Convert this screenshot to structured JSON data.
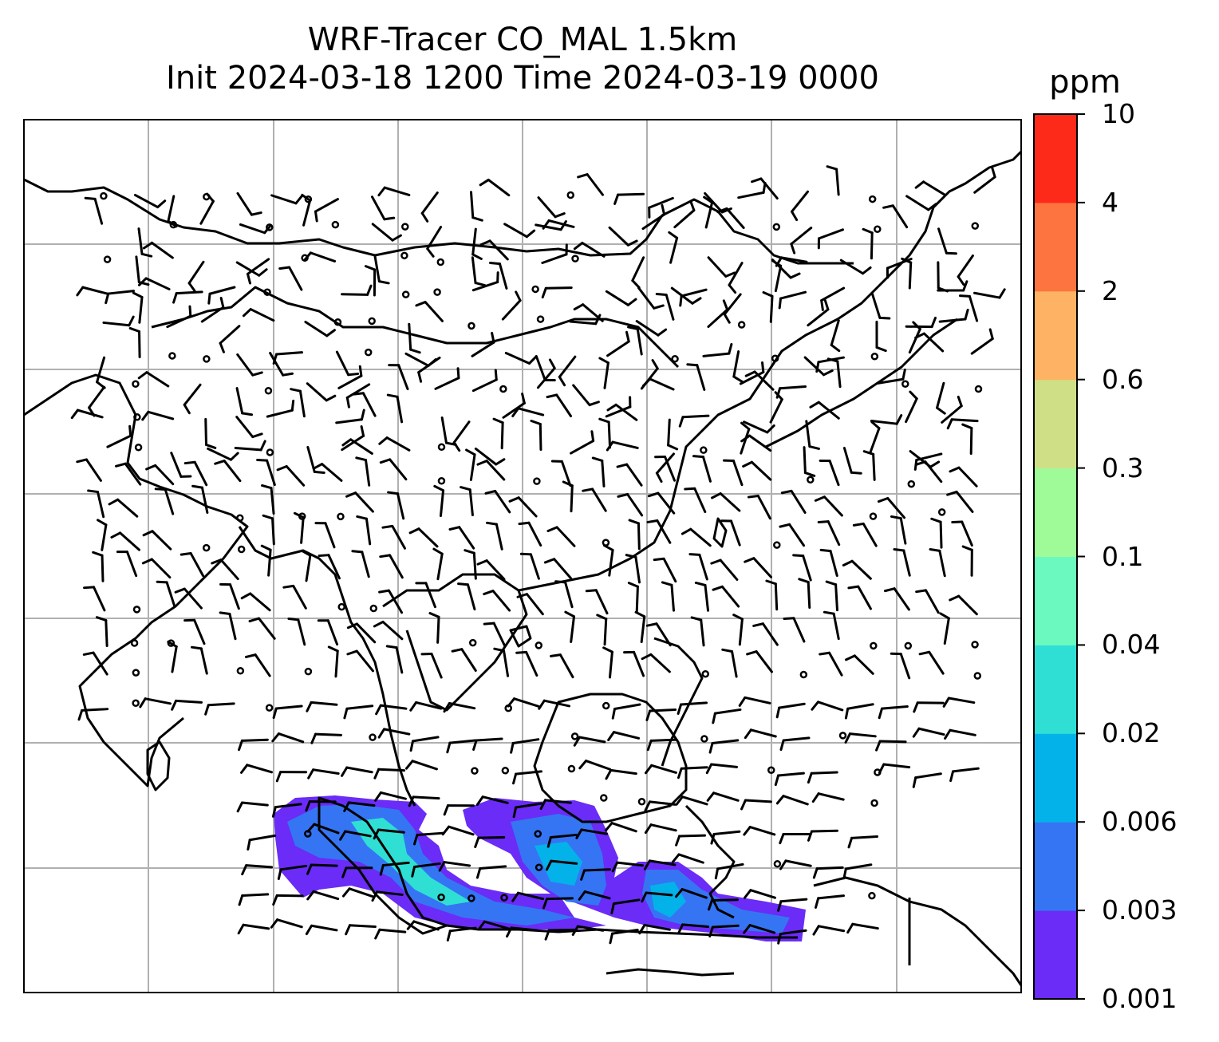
{
  "title": {
    "line1": "WRF-Tracer CO_MAL 1.5km",
    "line2": "Init 2024-03-18 1200 Time 2024-03-19 0000"
  },
  "colorbar": {
    "unit": "ppm",
    "ticks": [
      "0.001",
      "0.003",
      "0.006",
      "0.02",
      "0.04",
      "0.1",
      "0.3",
      "0.6",
      "2",
      "4",
      "10"
    ],
    "colors": [
      "#6a2cf6",
      "#3575f3",
      "#04b2ea",
      "#2fdfd4",
      "#6bf9bf",
      "#9ffb97",
      "#cfdf86",
      "#fdb363",
      "#fd7440",
      "#fd2a19"
    ]
  },
  "map": {
    "gridline_color": "#b0b0b0",
    "coastline_color": "#000000",
    "field_variable": "CO_MAL tracer concentration",
    "wind_symbols": "wind barbs and calm circles"
  }
}
